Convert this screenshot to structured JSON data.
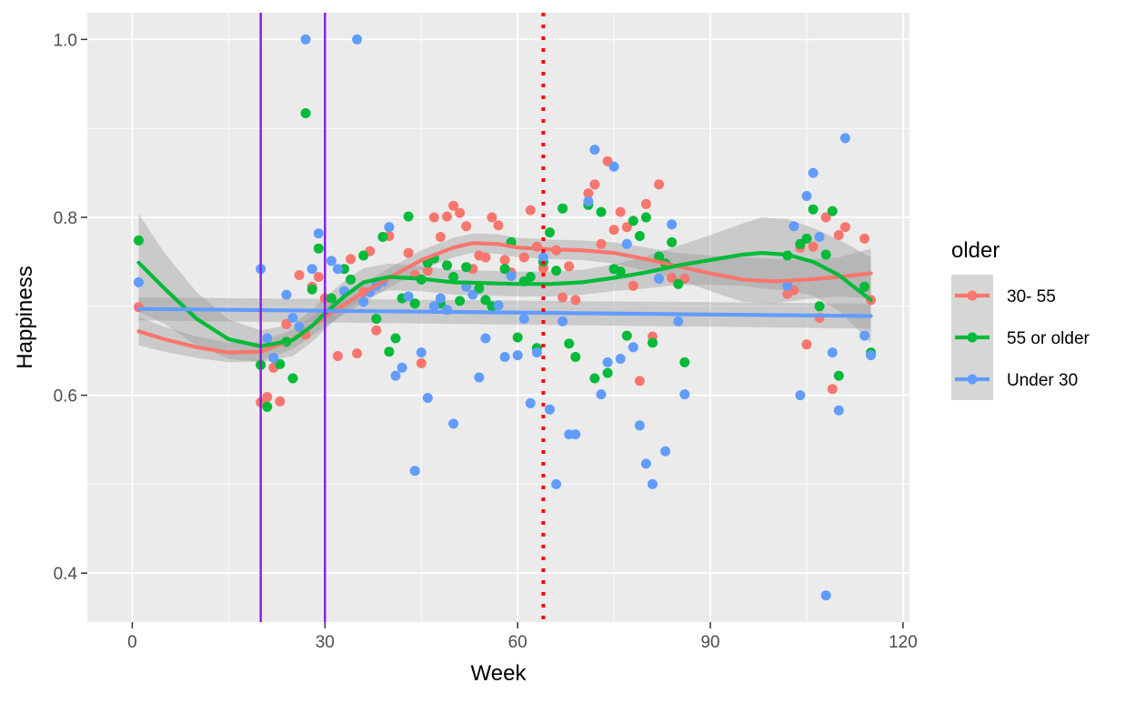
{
  "chart_data": {
    "type": "scatter",
    "xlabel": "Week",
    "ylabel": "Happiness",
    "xlim": [
      -7,
      121
    ],
    "ylim": [
      0.345,
      1.03
    ],
    "x_ticks": [
      0,
      30,
      60,
      90,
      120
    ],
    "x_tick_labels": [
      "0",
      "30",
      "60",
      "90",
      "120"
    ],
    "y_ticks": [
      0.4,
      0.6,
      0.8,
      1.0
    ],
    "y_tick_labels": [
      "0.4",
      "0.6",
      "0.8",
      "1.0"
    ],
    "grid": true,
    "legend": {
      "title": "older",
      "placement": "right",
      "entries": [
        "30- 55",
        "55 or older",
        "Under 30"
      ]
    },
    "colors": {
      "30- 55": "#F8766D",
      "55 or older": "#00BA38",
      "Under 30": "#619CFF",
      "panel": "#EBEBEB",
      "grid": "#FFFFFF",
      "ribbon": "#999999",
      "vlines_solid": "#8A1BE0",
      "vline_dotted": "#FF0000"
    },
    "vertical_lines": [
      {
        "x": 20,
        "style": "solid"
      },
      {
        "x": 30,
        "style": "solid"
      },
      {
        "x": 64,
        "style": "dotted"
      }
    ],
    "series": [
      {
        "name": "30- 55",
        "points": [
          [
            1,
            0.699
          ],
          [
            20,
            0.592
          ],
          [
            21,
            0.598
          ],
          [
            22,
            0.631
          ],
          [
            23,
            0.593
          ],
          [
            24,
            0.68
          ],
          [
            26,
            0.735
          ],
          [
            27,
            0.668
          ],
          [
            28,
            0.722
          ],
          [
            29,
            0.733
          ],
          [
            30,
            0.709
          ],
          [
            32,
            0.644
          ],
          [
            34,
            0.753
          ],
          [
            35,
            0.647
          ],
          [
            36,
            0.716
          ],
          [
            37,
            0.762
          ],
          [
            38,
            0.673
          ],
          [
            40,
            0.779
          ],
          [
            43,
            0.76
          ],
          [
            44,
            0.735
          ],
          [
            45,
            0.636
          ],
          [
            46,
            0.74
          ],
          [
            47,
            0.8
          ],
          [
            48,
            0.778
          ],
          [
            49,
            0.801
          ],
          [
            50,
            0.813
          ],
          [
            51,
            0.805
          ],
          [
            52,
            0.79
          ],
          [
            53,
            0.742
          ],
          [
            54,
            0.757
          ],
          [
            55,
            0.755
          ],
          [
            56,
            0.8
          ],
          [
            57,
            0.791
          ],
          [
            58,
            0.752
          ],
          [
            59,
            0.738
          ],
          [
            61,
            0.755
          ],
          [
            62,
            0.808
          ],
          [
            63,
            0.767
          ],
          [
            64,
            0.743
          ],
          [
            66,
            0.763
          ],
          [
            67,
            0.71
          ],
          [
            68,
            0.745
          ],
          [
            69,
            0.707
          ],
          [
            71,
            0.827
          ],
          [
            72,
            0.837
          ],
          [
            73,
            0.77
          ],
          [
            74,
            0.863
          ],
          [
            75,
            0.786
          ],
          [
            76,
            0.806
          ],
          [
            77,
            0.789
          ],
          [
            78,
            0.723
          ],
          [
            79,
            0.616
          ],
          [
            80,
            0.815
          ],
          [
            81,
            0.666
          ],
          [
            82,
            0.837
          ],
          [
            84,
            0.732
          ],
          [
            86,
            0.731
          ],
          [
            102,
            0.714
          ],
          [
            103,
            0.718
          ],
          [
            104,
            0.766
          ],
          [
            105,
            0.657
          ],
          [
            106,
            0.767
          ],
          [
            107,
            0.687
          ],
          [
            108,
            0.8
          ],
          [
            109,
            0.607
          ],
          [
            110,
            0.78
          ],
          [
            111,
            0.789
          ],
          [
            114,
            0.776
          ],
          [
            115,
            0.707
          ]
        ],
        "smooth": [
          [
            1,
            0.672
          ],
          [
            5,
            0.663
          ],
          [
            10,
            0.654
          ],
          [
            15,
            0.648
          ],
          [
            20,
            0.649
          ],
          [
            25,
            0.663
          ],
          [
            30,
            0.688
          ],
          [
            35,
            0.711
          ],
          [
            40,
            0.732
          ],
          [
            45,
            0.752
          ],
          [
            50,
            0.766
          ],
          [
            53,
            0.771
          ],
          [
            57,
            0.77
          ],
          [
            60,
            0.766
          ],
          [
            65,
            0.764
          ],
          [
            70,
            0.763
          ],
          [
            75,
            0.76
          ],
          [
            80,
            0.753
          ],
          [
            85,
            0.745
          ],
          [
            90,
            0.737
          ],
          [
            95,
            0.73
          ],
          [
            100,
            0.728
          ],
          [
            105,
            0.73
          ],
          [
            110,
            0.733
          ],
          [
            115,
            0.737
          ]
        ],
        "band": [
          0.016,
          0.014,
          0.012,
          0.011,
          0.011,
          0.011,
          0.011,
          0.011,
          0.011,
          0.011,
          0.011,
          0.011,
          0.011,
          0.011,
          0.011,
          0.011,
          0.012,
          0.013,
          0.015,
          0.02,
          0.025,
          0.025,
          0.022,
          0.022,
          0.028
        ]
      },
      {
        "name": "55 or older",
        "points": [
          [
            1,
            0.774
          ],
          [
            20,
            0.634
          ],
          [
            21,
            0.587
          ],
          [
            23,
            0.635
          ],
          [
            24,
            0.66
          ],
          [
            25,
            0.619
          ],
          [
            27,
            0.917
          ],
          [
            28,
            0.719
          ],
          [
            29,
            0.765
          ],
          [
            31,
            0.709
          ],
          [
            33,
            0.742
          ],
          [
            34,
            0.73
          ],
          [
            36,
            0.757
          ],
          [
            38,
            0.686
          ],
          [
            39,
            0.778
          ],
          [
            40,
            0.649
          ],
          [
            41,
            0.664
          ],
          [
            42,
            0.709
          ],
          [
            43,
            0.801
          ],
          [
            44,
            0.703
          ],
          [
            45,
            0.73
          ],
          [
            46,
            0.749
          ],
          [
            47,
            0.754
          ],
          [
            48,
            0.703
          ],
          [
            49,
            0.746
          ],
          [
            50,
            0.733
          ],
          [
            51,
            0.706
          ],
          [
            52,
            0.744
          ],
          [
            54,
            0.72
          ],
          [
            55,
            0.707
          ],
          [
            56,
            0.7
          ],
          [
            58,
            0.742
          ],
          [
            59,
            0.772
          ],
          [
            60,
            0.665
          ],
          [
            61,
            0.728
          ],
          [
            62,
            0.733
          ],
          [
            63,
            0.653
          ],
          [
            64,
            0.75
          ],
          [
            65,
            0.783
          ],
          [
            66,
            0.74
          ],
          [
            67,
            0.81
          ],
          [
            68,
            0.658
          ],
          [
            69,
            0.643
          ],
          [
            71,
            0.814
          ],
          [
            72,
            0.619
          ],
          [
            73,
            0.806
          ],
          [
            74,
            0.625
          ],
          [
            75,
            0.742
          ],
          [
            76,
            0.739
          ],
          [
            77,
            0.667
          ],
          [
            78,
            0.796
          ],
          [
            79,
            0.779
          ],
          [
            80,
            0.8
          ],
          [
            81,
            0.659
          ],
          [
            82,
            0.756
          ],
          [
            83,
            0.748
          ],
          [
            84,
            0.772
          ],
          [
            85,
            0.725
          ],
          [
            86,
            0.637
          ],
          [
            102,
            0.757
          ],
          [
            104,
            0.77
          ],
          [
            105,
            0.776
          ],
          [
            106,
            0.809
          ],
          [
            107,
            0.7
          ],
          [
            108,
            0.758
          ],
          [
            109,
            0.807
          ],
          [
            110,
            0.622
          ],
          [
            114,
            0.722
          ],
          [
            115,
            0.648
          ]
        ],
        "smooth": [
          [
            1,
            0.749
          ],
          [
            5,
            0.72
          ],
          [
            10,
            0.686
          ],
          [
            15,
            0.663
          ],
          [
            20,
            0.655
          ],
          [
            25,
            0.662
          ],
          [
            28,
            0.678
          ],
          [
            30,
            0.692
          ],
          [
            33,
            0.711
          ],
          [
            36,
            0.727
          ],
          [
            40,
            0.733
          ],
          [
            45,
            0.731
          ],
          [
            50,
            0.727
          ],
          [
            55,
            0.726
          ],
          [
            60,
            0.725
          ],
          [
            65,
            0.725
          ],
          [
            70,
            0.727
          ],
          [
            75,
            0.732
          ],
          [
            80,
            0.738
          ],
          [
            85,
            0.746
          ],
          [
            90,
            0.752
          ],
          [
            95,
            0.758
          ],
          [
            98,
            0.76
          ],
          [
            102,
            0.758
          ],
          [
            106,
            0.75
          ],
          [
            110,
            0.735
          ],
          [
            115,
            0.707
          ]
        ],
        "band": [
          0.055,
          0.04,
          0.03,
          0.022,
          0.018,
          0.018,
          0.018,
          0.018,
          0.017,
          0.016,
          0.015,
          0.014,
          0.014,
          0.014,
          0.014,
          0.014,
          0.014,
          0.015,
          0.018,
          0.022,
          0.028,
          0.035,
          0.04,
          0.04,
          0.038,
          0.04,
          0.048
        ]
      },
      {
        "name": "Under 30",
        "points": [
          [
            1,
            0.727
          ],
          [
            20,
            0.742
          ],
          [
            21,
            0.664
          ],
          [
            22,
            0.642
          ],
          [
            24,
            0.713
          ],
          [
            25,
            0.687
          ],
          [
            26,
            0.677
          ],
          [
            27,
            1.0
          ],
          [
            28,
            0.742
          ],
          [
            29,
            0.782
          ],
          [
            31,
            0.751
          ],
          [
            32,
            0.742
          ],
          [
            33,
            0.717
          ],
          [
            35,
            1.0
          ],
          [
            36,
            0.705
          ],
          [
            37,
            0.716
          ],
          [
            38,
            0.723
          ],
          [
            39,
            0.728
          ],
          [
            40,
            0.789
          ],
          [
            41,
            0.622
          ],
          [
            42,
            0.631
          ],
          [
            43,
            0.711
          ],
          [
            44,
            0.515
          ],
          [
            45,
            0.648
          ],
          [
            46,
            0.597
          ],
          [
            47,
            0.7
          ],
          [
            48,
            0.709
          ],
          [
            49,
            0.696
          ],
          [
            50,
            0.568
          ],
          [
            52,
            0.722
          ],
          [
            53,
            0.713
          ],
          [
            54,
            0.62
          ],
          [
            55,
            0.664
          ],
          [
            57,
            0.701
          ],
          [
            58,
            0.643
          ],
          [
            59,
            0.734
          ],
          [
            60,
            0.645
          ],
          [
            61,
            0.686
          ],
          [
            62,
            0.591
          ],
          [
            63,
            0.648
          ],
          [
            64,
            0.755
          ],
          [
            65,
            0.584
          ],
          [
            66,
            0.5
          ],
          [
            67,
            0.683
          ],
          [
            68,
            0.556
          ],
          [
            69,
            0.556
          ],
          [
            71,
            0.818
          ],
          [
            72,
            0.876
          ],
          [
            73,
            0.601
          ],
          [
            74,
            0.637
          ],
          [
            75,
            0.857
          ],
          [
            76,
            0.641
          ],
          [
            77,
            0.77
          ],
          [
            78,
            0.654
          ],
          [
            79,
            0.566
          ],
          [
            80,
            0.523
          ],
          [
            81,
            0.5
          ],
          [
            82,
            0.731
          ],
          [
            83,
            0.537
          ],
          [
            84,
            0.792
          ],
          [
            85,
            0.683
          ],
          [
            86,
            0.601
          ],
          [
            102,
            0.723
          ],
          [
            103,
            0.79
          ],
          [
            104,
            0.6
          ],
          [
            105,
            0.824
          ],
          [
            106,
            0.85
          ],
          [
            107,
            0.778
          ],
          [
            108,
            0.375
          ],
          [
            109,
            0.648
          ],
          [
            110,
            0.583
          ],
          [
            111,
            0.889
          ],
          [
            114,
            0.667
          ],
          [
            115,
            0.645
          ]
        ],
        "smooth": [
          [
            1,
            0.697
          ],
          [
            115,
            0.689
          ]
        ],
        "band": [
          0.013,
          0.014
        ]
      }
    ]
  }
}
